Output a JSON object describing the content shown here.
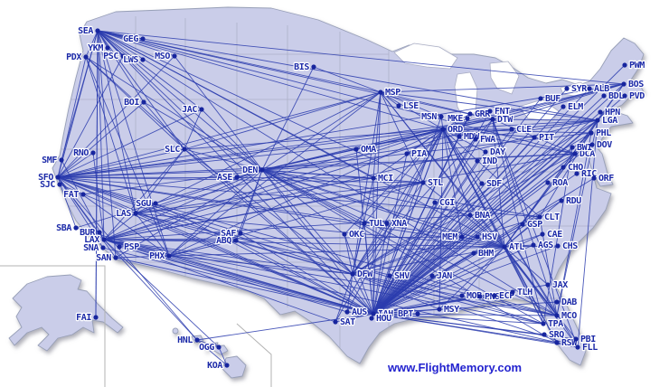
{
  "map": {
    "watermark": "www.FlightMemory.com",
    "colors": {
      "land": "#cacde9",
      "coast": "#98a0b8",
      "state_border": "#a9adc4",
      "route": "#2b3cae",
      "airport_dot": "#17259e",
      "airport_label": "#1c2aa8",
      "watermark": "#2323cf",
      "inset_border": "#b3b3b3"
    },
    "airports": [
      [
        "SEA",
        108,
        34,
        "L"
      ],
      [
        "GEG",
        158,
        43,
        "L"
      ],
      [
        "YKM",
        119,
        53,
        "L"
      ],
      [
        "PDX",
        95,
        63,
        "L"
      ],
      [
        "PSC",
        136,
        62,
        "L"
      ],
      [
        "LWS",
        158,
        66,
        "L"
      ],
      [
        "MSO",
        193,
        62,
        "L"
      ],
      [
        "BOI",
        159,
        113,
        "L"
      ],
      [
        "JAC",
        223,
        121,
        "L"
      ],
      [
        "BIS",
        347,
        74,
        "L"
      ],
      [
        "MSP",
        421,
        102,
        "R"
      ],
      [
        "LSE",
        441,
        117,
        "R"
      ],
      [
        "MSN",
        488,
        129,
        "L"
      ],
      [
        "MKE",
        517,
        131,
        "L"
      ],
      [
        "GRR",
        520,
        126,
        "R"
      ],
      [
        "FNT",
        542,
        123,
        "R"
      ],
      [
        "ORD",
        490,
        143,
        "R"
      ],
      [
        "MDW",
        508,
        151,
        "R"
      ],
      [
        "DTW",
        545,
        132,
        "R"
      ],
      [
        "CLE",
        566,
        143,
        "R"
      ],
      [
        "PIT",
        591,
        152,
        "R"
      ],
      [
        "FWA",
        526,
        154,
        "R"
      ],
      [
        "DAY",
        537,
        168,
        "R"
      ],
      [
        "IND",
        528,
        178,
        "R"
      ],
      [
        "SDF",
        533,
        203,
        "R"
      ],
      [
        "STL",
        468,
        202,
        "R"
      ],
      [
        "PIA",
        450,
        170,
        "R"
      ],
      [
        "CGI",
        481,
        224,
        "R"
      ],
      [
        "OMA",
        394,
        165,
        "R"
      ],
      [
        "MCI",
        413,
        197,
        "R"
      ],
      [
        "OKC",
        381,
        259,
        "R"
      ],
      [
        "TUL",
        403,
        247,
        "R"
      ],
      [
        "XNA",
        428,
        247,
        "R"
      ],
      [
        "MEM",
        511,
        262,
        "L"
      ],
      [
        "BNA",
        520,
        238,
        "R"
      ],
      [
        "HSV",
        528,
        262,
        "R"
      ],
      [
        "BHM",
        524,
        280,
        "R"
      ],
      [
        "ATL",
        558,
        273,
        "R"
      ],
      [
        "CLT",
        597,
        240,
        "R"
      ],
      [
        "GSP",
        578,
        248,
        "R"
      ],
      [
        "CAE",
        600,
        259,
        "R"
      ],
      [
        "AGS",
        590,
        271,
        "R"
      ],
      [
        "CHS",
        617,
        272,
        "R"
      ],
      [
        "RDU",
        621,
        222,
        "R"
      ],
      [
        "ROA",
        606,
        202,
        "R"
      ],
      [
        "RIC",
        638,
        192,
        "R"
      ],
      [
        "ORF",
        657,
        197,
        "R"
      ],
      [
        "CHO",
        623,
        185,
        "R"
      ],
      [
        "DCA",
        636,
        170,
        "R"
      ],
      [
        "BWI",
        633,
        163,
        "R"
      ],
      [
        "DOV",
        655,
        160,
        "R"
      ],
      [
        "PHL",
        654,
        147,
        "R"
      ],
      [
        "LGA",
        661,
        133,
        "R"
      ],
      [
        "HPN",
        664,
        124,
        "R"
      ],
      [
        "ELM",
        623,
        118,
        "R"
      ],
      [
        "SYR",
        627,
        98,
        "R"
      ],
      [
        "ALB",
        652,
        98,
        "R"
      ],
      [
        "BDL",
        668,
        106,
        "R"
      ],
      [
        "PVD",
        691,
        106,
        "R"
      ],
      [
        "BUF",
        598,
        109,
        "R"
      ],
      [
        "BOS",
        690,
        93,
        "R"
      ],
      [
        "PWM",
        691,
        72,
        "R"
      ],
      [
        "DEN",
        290,
        188,
        "L"
      ],
      [
        "ASE",
        262,
        196,
        "L"
      ],
      [
        "SLC",
        204,
        165,
        "L"
      ],
      [
        "SMF",
        68,
        177,
        "L"
      ],
      [
        "RNO",
        103,
        169,
        "L"
      ],
      [
        "SFO",
        64,
        196,
        "L"
      ],
      [
        "SJC",
        66,
        204,
        "L"
      ],
      [
        "FAT",
        92,
        215,
        "L"
      ],
      [
        "SBA",
        84,
        252,
        "L"
      ],
      [
        "BUR",
        110,
        257,
        "L"
      ],
      [
        "LAX",
        115,
        265,
        "L"
      ],
      [
        "SNA",
        114,
        274,
        "L"
      ],
      [
        "PSP",
        132,
        273,
        "R"
      ],
      [
        "SAN",
        128,
        285,
        "L"
      ],
      [
        "PHX",
        187,
        283,
        "L"
      ],
      [
        "SGU",
        172,
        225,
        "L"
      ],
      [
        "LAS",
        150,
        236,
        "L"
      ],
      [
        "SAF",
        266,
        258,
        "L"
      ],
      [
        "ABQ",
        261,
        266,
        "L"
      ],
      [
        "DFW",
        390,
        303,
        "R"
      ],
      [
        "SHV",
        431,
        305,
        "R"
      ],
      [
        "JAN",
        478,
        305,
        "R"
      ],
      [
        "AUS",
        384,
        345,
        "R"
      ],
      [
        "SAT",
        371,
        356,
        "R"
      ],
      [
        "IAH",
        413,
        347,
        "R"
      ],
      [
        "BPT",
        462,
        347,
        "L"
      ],
      [
        "HOU",
        411,
        352,
        "R"
      ],
      [
        "MSY",
        486,
        342,
        "R"
      ],
      [
        "MOB",
        511,
        327,
        "R"
      ],
      [
        "PNS",
        531,
        328,
        "R"
      ],
      [
        "ECP",
        547,
        327,
        "R"
      ],
      [
        "TLH",
        567,
        323,
        "R"
      ],
      [
        "JAX",
        606,
        315,
        "R"
      ],
      [
        "DAB",
        616,
        334,
        "R"
      ],
      [
        "MCO",
        616,
        349,
        "R"
      ],
      [
        "TPA",
        601,
        358,
        "R"
      ],
      [
        "SRQ",
        602,
        370,
        "R"
      ],
      [
        "RSW",
        616,
        379,
        "R"
      ],
      [
        "PBI",
        637,
        375,
        "R"
      ],
      [
        "FLL",
        639,
        384,
        "R"
      ],
      [
        "FAI",
        106,
        351,
        "L"
      ],
      [
        "HNL",
        218,
        376,
        "L"
      ],
      [
        "OGG",
        242,
        384,
        "L"
      ],
      [
        "KOA",
        251,
        404,
        "L"
      ]
    ],
    "routes": [
      "SEA-PDX",
      "SEA-GEG",
      "SEA-PSC",
      "SEA-YKM",
      "SEA-MSO",
      "SEA-BOI",
      "SEA-JAC",
      "SEA-SLC",
      "SEA-DEN",
      "SEA-SMF",
      "SEA-SFO",
      "SEA-LAX",
      "SEA-SAN",
      "SEA-LAS",
      "SEA-PHX",
      "SEA-MSP",
      "SEA-ORD",
      "SEA-STL",
      "SEA-MCI",
      "SEA-DFW",
      "SEA-IAH",
      "SEA-ATL",
      "SEA-DTW",
      "SEA-BOS",
      "SEA-LGA",
      "SEA-DCA",
      "SEA-MCO",
      "SEA-FAI",
      "PDX-SFO",
      "PDX-DEN",
      "PDX-LAS",
      "PDX-PHX",
      "PDX-SLC",
      "PDX-IAH",
      "SFO-RNO",
      "SFO-SLC",
      "SFO-LAS",
      "SFO-LAX",
      "SFO-SNA",
      "SFO-SAN",
      "SFO-SBA",
      "SFO-DEN",
      "SFO-PHX",
      "SFO-ABQ",
      "SFO-MSP",
      "SFO-ORD",
      "SFO-STL",
      "SFO-MCI",
      "SFO-DFW",
      "SFO-IAH",
      "SFO-ATL",
      "SFO-MEM",
      "SFO-BOS",
      "SFO-LGA",
      "SFO-DCA",
      "SFO-MCO",
      "SFO-TPA",
      "SFO-HNL",
      "SFO-BOI",
      "SFO-MSO",
      "SFO-PSC",
      "SFO-JAC",
      "SFO-DTW",
      "SFO-CLT",
      "LAX-LAS",
      "LAX-SLC",
      "LAX-PHX",
      "LAX-DEN",
      "LAX-ABQ",
      "LAX-DFW",
      "LAX-IAH",
      "LAX-AUS",
      "LAX-SAT",
      "LAX-ORD",
      "LAX-STL",
      "LAX-MEM",
      "LAX-BNA",
      "LAX-ATL",
      "LAX-MCO",
      "LAX-FLL",
      "LAX-TPA",
      "LAX-BOS",
      "LAX-LGA",
      "LAX-DCA",
      "LAX-HNL",
      "LAX-OGG",
      "LAX-SMF",
      "LAX-RNO",
      "LAS-SLC",
      "LAS-DEN",
      "LAS-PHX",
      "LAS-DFW",
      "LAS-IAH",
      "LAS-ORD",
      "LAS-MSP",
      "LAS-ATL",
      "LAS-MCI",
      "LAS-STL",
      "LAS-MCO",
      "PHX-DEN",
      "PHX-ABQ",
      "PHX-DFW",
      "PHX-IAH",
      "PHX-ORD",
      "PHX-ATL",
      "PHX-MSP",
      "PHX-STL",
      "PHX-SAN",
      "SLC-DEN",
      "SLC-ORD",
      "SLC-IAH",
      "SLC-DFW",
      "SLC-MSP",
      "SLC-BOI",
      "SLC-JAC",
      "DEN-ASE",
      "DEN-ABQ",
      "DEN-SAF",
      "DEN-MCI",
      "DEN-OMA",
      "DEN-MSP",
      "DEN-ORD",
      "DEN-STL",
      "DEN-DFW",
      "DEN-IAH",
      "DEN-ATL",
      "DEN-OKC",
      "DEN-TUL",
      "DEN-XNA",
      "DEN-MEM",
      "DEN-BNA",
      "DEN-CLT",
      "DEN-DTW",
      "DEN-PHL",
      "DEN-LGA",
      "DEN-BOS",
      "DEN-DCA",
      "DEN-MCO",
      "DEN-TPA",
      "DEN-RSW",
      "DEN-SAN",
      "DEN-BOI",
      "DEN-JAC",
      "DEN-MSO",
      "DEN-BIS",
      "DEN-FAT",
      "DEN-SBA",
      "MSP-ORD",
      "MSP-DTW",
      "MSP-STL",
      "MSP-MCI",
      "MSP-DFW",
      "MSP-IAH",
      "MSP-ATL",
      "MSP-LGA",
      "MSP-BOS",
      "MSP-MCO",
      "MSP-BIS",
      "MSP-LSE",
      "MSP-MSN",
      "ORD-MKE",
      "ORD-MSN",
      "ORD-GRR",
      "ORD-DTW",
      "ORD-CLE",
      "ORD-PIT",
      "ORD-STL",
      "ORD-MCI",
      "ORD-OMA",
      "ORD-MEM",
      "ORD-BNA",
      "ORD-ATL",
      "ORD-CLT",
      "ORD-DCA",
      "ORD-PHL",
      "ORD-LGA",
      "ORD-BOS",
      "ORD-MCO",
      "ORD-TPA",
      "ORD-FLL",
      "ORD-RSW",
      "ORD-IAH",
      "ORD-DFW",
      "ORD-AUS",
      "ORD-SAT",
      "ORD-MSY",
      "ORD-OKC",
      "ORD-TUL",
      "ORD-PIA",
      "ORD-SDF",
      "ORD-DAY",
      "ORD-FWA",
      "IAH-DFW",
      "IAH-AUS",
      "IAH-SAT",
      "IAH-BPT",
      "IAH-SHV",
      "IAH-JAN",
      "IAH-MSY",
      "IAH-MOB",
      "IAH-PNS",
      "IAH-ECP",
      "IAH-TLH",
      "IAH-JAX",
      "IAH-DAB",
      "IAH-MCO",
      "IAH-TPA",
      "IAH-SRQ",
      "IAH-RSW",
      "IAH-PBI",
      "IAH-FLL",
      "IAH-ATL",
      "IAH-BHM",
      "IAH-HSV",
      "IAH-BNA",
      "IAH-MEM",
      "IAH-CLT",
      "IAH-GSP",
      "IAH-CAE",
      "IAH-AGS",
      "IAH-CHS",
      "IAH-RDU",
      "IAH-RIC",
      "IAH-ORF",
      "IAH-ROA",
      "IAH-CHO",
      "IAH-DCA",
      "IAH-BWI",
      "IAH-PHL",
      "IAH-DOV",
      "IAH-LGA",
      "IAH-HPN",
      "IAH-BOS",
      "IAH-PVD",
      "IAH-BDL",
      "IAH-ALB",
      "IAH-SYR",
      "IAH-BUF",
      "IAH-ELM",
      "IAH-PWM",
      "IAH-PIT",
      "IAH-CLE",
      "IAH-DTW",
      "IAH-FNT",
      "IAH-GRR",
      "IAH-MKE",
      "IAH-MSN",
      "IAH-MDW",
      "IAH-STL",
      "IAH-CGI",
      "IAH-SDF",
      "IAH-IND",
      "IAH-DAY",
      "IAH-FWA",
      "IAH-PIA",
      "IAH-MCI",
      "IAH-OMA",
      "IAH-TUL",
      "IAH-XNA",
      "IAH-OKC",
      "IAH-SGU",
      "IAH-SAN",
      "IAH-SNA",
      "IAH-PSP",
      "IAH-SBA",
      "IAH-SJC",
      "IAH-HNL",
      "IAH-HOU",
      "IAH-SAF",
      "IAH-ABQ",
      "ATL-MCO",
      "ATL-TPA",
      "ATL-JAX",
      "ATL-CHS",
      "ATL-CAE",
      "ATL-AGS",
      "ATL-CLT",
      "ATL-RDU",
      "ATL-DCA",
      "ATL-LGA",
      "ATL-BOS",
      "ATL-PHL",
      "ATL-DTW",
      "ATL-STL",
      "ATL-MEM",
      "ATL-BNA",
      "ATL-BHM",
      "ATL-HSV",
      "ATL-MOB",
      "ATL-MSY",
      "ATL-DFW",
      "ATL-FLL",
      "ATL-PBI",
      "ATL-RSW",
      "DFW-AUS",
      "DFW-SAT",
      "DFW-MSY",
      "DFW-MEM",
      "DFW-STL",
      "DFW-MCI",
      "DFW-TUL",
      "DFW-OKC",
      "DFW-XNA",
      "DFW-MCO",
      "DFW-TPA",
      "DFW-FLL",
      "DFW-CLT",
      "DFW-DCA",
      "DFW-LGA",
      "DFW-PHL",
      "DFW-DTW",
      "DFW-ABQ",
      "BOS-DCA",
      "LGA-MCO",
      "PHL-MCO",
      "BWI-TPA",
      "LGA-FLL",
      "CLT-LGA",
      "CLT-MCO",
      "DTW-LGA",
      "DTW-BOS",
      "DTW-MCO",
      "DTW-TPA",
      "DTW-FLL",
      "DTW-DCA",
      "HNL-OGG",
      "OGG-KOA",
      "HNL-KOA",
      "FAI-SEA"
    ]
  }
}
